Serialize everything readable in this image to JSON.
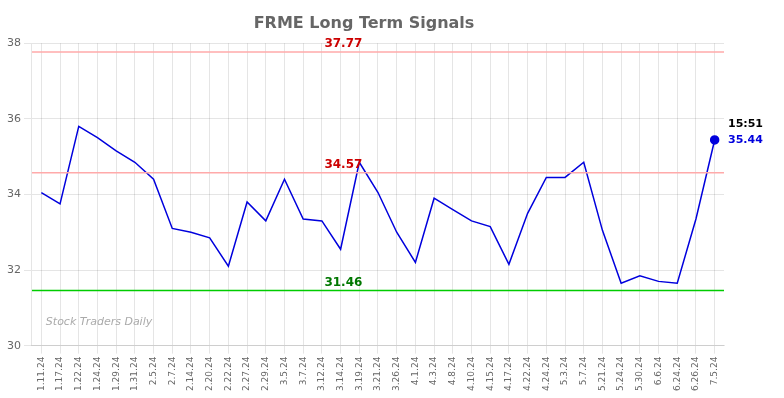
{
  "chart_data": {
    "type": "line",
    "title": "FRME Long Term Signals",
    "categories": [
      "1.11.24",
      "1.17.24",
      "1.22.24",
      "1.24.24",
      "1.29.24",
      "1.31.24",
      "2.5.24",
      "2.7.24",
      "2.14.24",
      "2.20.24",
      "2.22.24",
      "2.27.24",
      "2.29.24",
      "3.5.24",
      "3.7.24",
      "3.12.24",
      "3.14.24",
      "3.19.24",
      "3.21.24",
      "3.26.24",
      "4.1.24",
      "4.3.24",
      "4.8.24",
      "4.10.24",
      "4.15.24",
      "4.17.24",
      "4.22.24",
      "4.24.24",
      "5.3.24",
      "5.7.24",
      "5.21.24",
      "5.24.24",
      "5.30.24",
      "6.6.24",
      "6.24.24",
      "6.26.24",
      "7.5.24"
    ],
    "values": [
      34.05,
      33.75,
      35.8,
      35.5,
      35.15,
      34.85,
      34.4,
      33.1,
      33.0,
      32.85,
      32.1,
      33.8,
      33.3,
      34.4,
      33.35,
      33.3,
      32.55,
      34.85,
      34.05,
      33.0,
      32.2,
      33.9,
      33.6,
      33.3,
      33.15,
      32.15,
      33.5,
      34.45,
      34.45,
      34.85,
      33.05,
      31.65,
      31.85,
      31.7,
      31.65,
      33.35,
      35.44
    ],
    "color": "#0000dd",
    "hlines": [
      {
        "value": 37.77,
        "label": "37.77",
        "color": "#ffaaaa",
        "label_color": "#cc0000"
      },
      {
        "value": 34.57,
        "label": "34.57",
        "color": "#ffaaaa",
        "label_color": "#cc0000"
      },
      {
        "value": 31.46,
        "label": "31.46",
        "color": "#00cc00",
        "label_color": "#007700"
      }
    ],
    "annotations": [
      {
        "text": "15:51",
        "color": "#000000"
      },
      {
        "text": "35.44",
        "color": "#0000dd"
      }
    ],
    "watermark": "Stock Traders Daily",
    "ylim": [
      30,
      38
    ],
    "yticks": [
      30,
      32,
      34,
      36,
      38
    ],
    "grid": true
  }
}
